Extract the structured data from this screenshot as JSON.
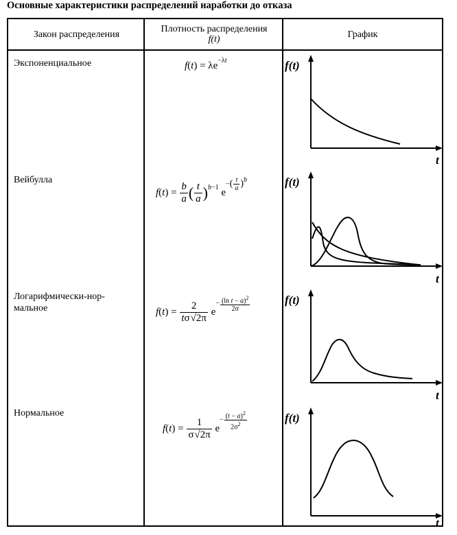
{
  "title": "Основные характеристики распределений наработки до отказа",
  "headers": {
    "law": "Закон распределения",
    "density_line1": "Плотность распределения",
    "density_line2": "f(t)",
    "graph": "График"
  },
  "rows": [
    {
      "law": "Экспоненциальное",
      "graph_ylabel": "f(t)",
      "graph_xlabel": "t"
    },
    {
      "law": "Вейбулла",
      "graph_ylabel": "f(t)",
      "graph_xlabel": "t"
    },
    {
      "law": "Логарифмически-нор-мальное",
      "graph_ylabel": "f(t)",
      "graph_xlabel": "t"
    },
    {
      "law": "Нормальное",
      "graph_ylabel": "f(t)",
      "graph_xlabel": "t"
    }
  ]
}
